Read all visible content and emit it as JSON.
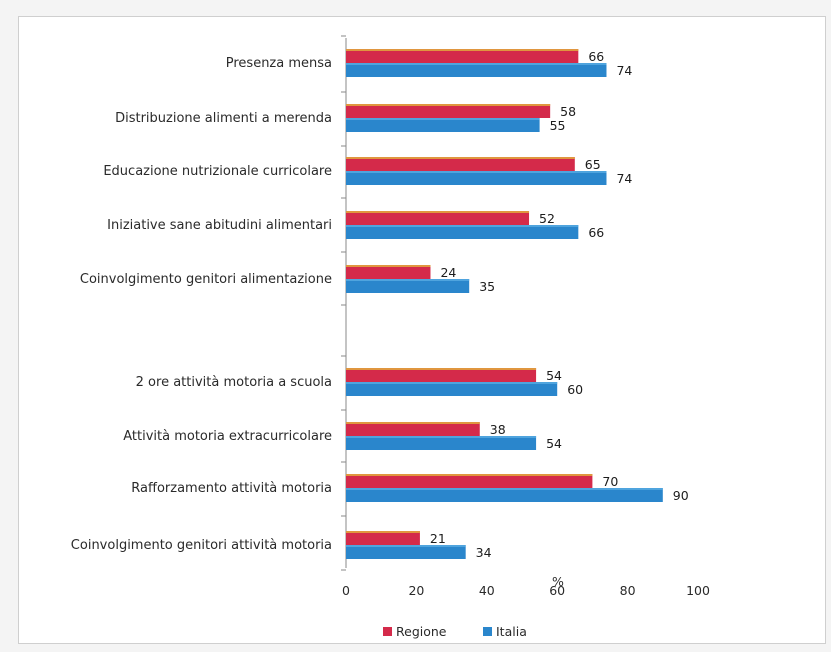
{
  "chart_data": {
    "type": "bar",
    "orientation": "horizontal",
    "categories": [
      "Presenza mensa",
      "Distribuzione alimenti a merenda",
      "Educazione nutrizionale curricolare",
      "Iniziative sane abitudini alimentari",
      "Coinvolgimento genitori alimentazione",
      "",
      "2 ore attività motoria a scuola",
      "Attività motoria extracurricolare",
      "Rafforzamento attività motoria",
      "Coinvolgimento genitori attività motoria"
    ],
    "series": [
      {
        "name": "Regione",
        "color": "#d42a4a",
        "values": [
          66,
          58,
          65,
          52,
          24,
          null,
          54,
          38,
          70,
          21
        ]
      },
      {
        "name": "Italia",
        "color": "#2a86cc",
        "values": [
          74,
          55,
          74,
          66,
          35,
          null,
          60,
          54,
          90,
          34
        ]
      }
    ],
    "xticks": [
      "0",
      "20",
      "40",
      "60",
      "80",
      "100"
    ],
    "xlim": [
      0,
      100
    ],
    "xlabel": "%",
    "legend_position": "bottom"
  }
}
